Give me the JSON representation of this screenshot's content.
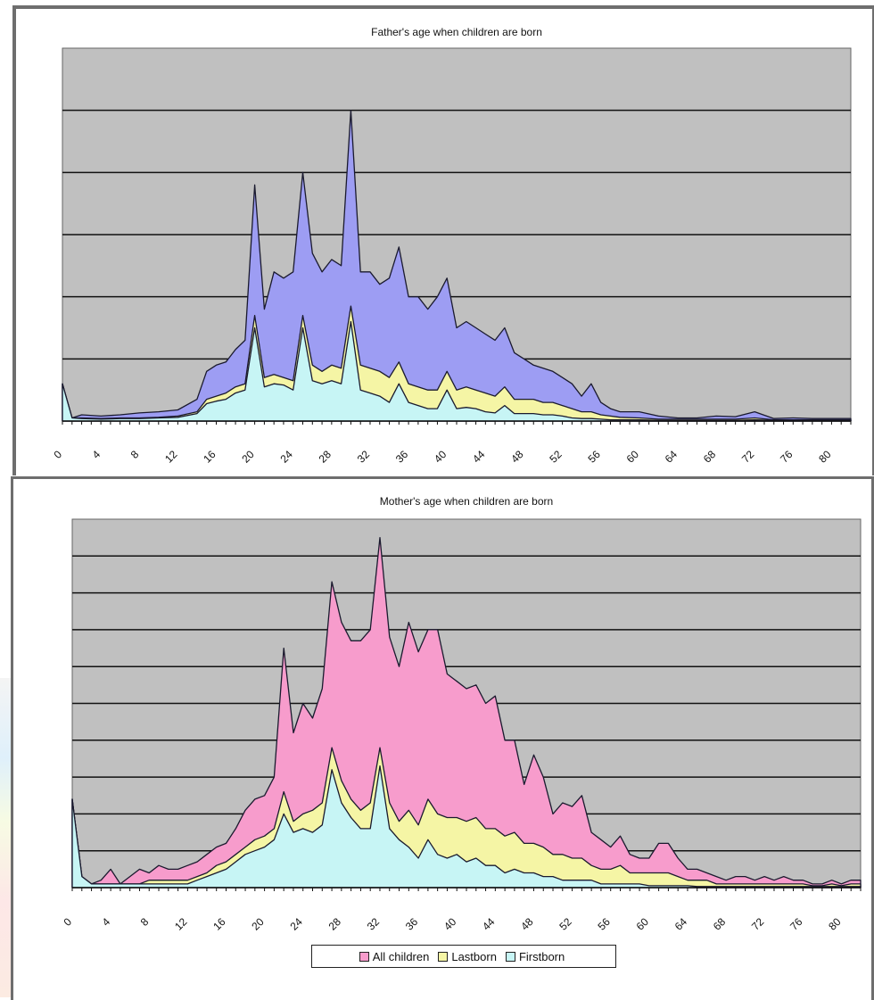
{
  "chart_data": [
    {
      "type": "area",
      "title": "Father's age when children are born",
      "xlabel": "",
      "ylabel": "",
      "x_tick_labels": [
        "0",
        "4",
        "8",
        "12",
        "16",
        "20",
        "24",
        "28",
        "32",
        "36",
        "40",
        "44",
        "48",
        "52",
        "56",
        "60",
        "64",
        "68",
        "72",
        "76",
        "80"
      ],
      "x_range": [
        0,
        82
      ],
      "ylim": [
        0,
        60
      ],
      "grid": true,
      "colors": {
        "All children": "#9d9df3",
        "Lastborn": "#f5f5a5",
        "Firstborn": "#c7f5f5",
        "plot_bg": "#c0c0c0"
      },
      "series": [
        {
          "name": "All children",
          "x": [
            0,
            1,
            2,
            4,
            6,
            8,
            10,
            12,
            14,
            15,
            16,
            17,
            18,
            19,
            20,
            21,
            22,
            23,
            24,
            25,
            26,
            27,
            28,
            29,
            30,
            31,
            32,
            33,
            34,
            35,
            36,
            37,
            38,
            39,
            40,
            41,
            42,
            43,
            44,
            45,
            46,
            47,
            48,
            49,
            50,
            51,
            52,
            53,
            54,
            55,
            56,
            57,
            58,
            60,
            62,
            64,
            66,
            68,
            70,
            72,
            74,
            76,
            78,
            80,
            82
          ],
          "values": [
            6,
            0.5,
            1,
            0.8,
            1,
            1.3,
            1.5,
            1.8,
            3.5,
            8,
            9,
            9.5,
            11.5,
            13,
            38,
            18,
            24,
            23,
            24,
            40,
            27,
            24,
            26,
            25,
            50,
            24,
            24,
            22,
            23,
            28,
            20,
            20,
            18,
            20,
            23,
            15,
            16,
            15,
            14,
            13,
            15,
            11,
            10,
            9,
            8.5,
            8,
            7,
            6,
            4,
            6,
            3,
            2,
            1.5,
            1.5,
            0.8,
            0.5,
            0.5,
            0.8,
            0.7,
            1.5,
            0.4,
            0.5,
            0.4,
            0.4,
            0.4
          ]
        },
        {
          "name": "Lastborn",
          "x": [
            0,
            1,
            2,
            4,
            6,
            8,
            10,
            12,
            14,
            15,
            16,
            17,
            18,
            19,
            20,
            21,
            22,
            23,
            24,
            25,
            26,
            27,
            28,
            29,
            30,
            31,
            32,
            33,
            34,
            35,
            36,
            37,
            38,
            39,
            40,
            41,
            42,
            43,
            44,
            45,
            46,
            47,
            48,
            49,
            50,
            51,
            52,
            53,
            54,
            55,
            56,
            57,
            58,
            60,
            62,
            64,
            66,
            68,
            70,
            72,
            74,
            76,
            78,
            80,
            82
          ],
          "values": [
            6,
            0.5,
            0.5,
            0.4,
            0.5,
            0.5,
            0.6,
            0.8,
            1.5,
            3.5,
            4,
            4.5,
            5.5,
            6,
            17,
            7,
            7.5,
            7,
            6.5,
            17,
            9,
            8,
            9,
            8.5,
            18.5,
            9,
            8.5,
            8,
            7,
            9.5,
            6,
            5.5,
            5,
            5,
            8,
            5,
            5.5,
            5,
            4.5,
            4,
            5.5,
            3.5,
            3.5,
            3.5,
            3,
            3,
            2.5,
            2,
            1.5,
            1.5,
            1,
            0.8,
            0.6,
            0.5,
            0.3,
            0.3,
            0.3,
            0.3,
            0.3,
            0.5,
            0.2,
            0.2,
            0.2,
            0.2,
            0.2
          ]
        },
        {
          "name": "Firstborn",
          "x": [
            0,
            1,
            2,
            4,
            6,
            8,
            10,
            12,
            14,
            15,
            16,
            17,
            18,
            19,
            20,
            21,
            22,
            23,
            24,
            25,
            26,
            27,
            28,
            29,
            30,
            31,
            32,
            33,
            34,
            35,
            36,
            37,
            38,
            39,
            40,
            41,
            42,
            43,
            44,
            45,
            46,
            47,
            48,
            49,
            50,
            51,
            52,
            53,
            54,
            55,
            56,
            57,
            58,
            60,
            62,
            64,
            66,
            68,
            70,
            72,
            74,
            76,
            78,
            80,
            82
          ],
          "values": [
            6,
            0.5,
            0.4,
            0.3,
            0.4,
            0.4,
            0.5,
            0.6,
            1.2,
            2.8,
            3.2,
            3.5,
            4.5,
            5,
            15,
            5.5,
            6,
            5.8,
            5,
            15,
            6.5,
            6,
            6.5,
            6,
            16,
            5,
            4.5,
            4,
            3,
            6,
            3,
            2.5,
            2,
            2,
            5,
            2,
            2.2,
            2,
            1.5,
            1.3,
            2.5,
            1.2,
            1.2,
            1.2,
            1,
            1,
            0.8,
            0.5,
            0.4,
            0.4,
            0.3,
            0.2,
            0.2,
            0.2,
            0.1,
            0.1,
            0.1,
            0.1,
            0.1,
            0.2,
            0.1,
            0.1,
            0.1,
            0.1,
            0.1
          ]
        }
      ]
    },
    {
      "type": "area",
      "title": "Mother's age when children are born",
      "xlabel": "",
      "ylabel": "",
      "x_tick_labels": [
        "0",
        "4",
        "8",
        "12",
        "16",
        "20",
        "24",
        "28",
        "32",
        "36",
        "40",
        "44",
        "48",
        "52",
        "56",
        "60",
        "64",
        "68",
        "72",
        "76",
        "80"
      ],
      "x_range": [
        0,
        82
      ],
      "ylim": [
        0,
        100
      ],
      "grid": true,
      "legend_position": "bottom",
      "colors": {
        "All children": "#f79ccc",
        "Lastborn": "#f5f5a5",
        "Firstborn": "#c7f5f5",
        "plot_bg": "#c0c0c0"
      },
      "series": [
        {
          "name": "All children",
          "x": [
            0,
            1,
            2,
            3,
            4,
            5,
            6,
            7,
            8,
            9,
            10,
            11,
            12,
            13,
            14,
            15,
            16,
            17,
            18,
            19,
            20,
            21,
            22,
            23,
            24,
            25,
            26,
            27,
            28,
            29,
            30,
            31,
            32,
            33,
            34,
            35,
            36,
            37,
            38,
            39,
            40,
            41,
            42,
            43,
            44,
            45,
            46,
            47,
            48,
            49,
            50,
            51,
            52,
            53,
            54,
            55,
            56,
            57,
            58,
            59,
            60,
            61,
            62,
            63,
            64,
            65,
            66,
            67,
            68,
            69,
            70,
            71,
            72,
            73,
            74,
            75,
            76,
            77,
            78,
            79,
            80,
            81,
            82
          ],
          "values": [
            24,
            3,
            1,
            2,
            5,
            1,
            3,
            5,
            4,
            6,
            5,
            5,
            6,
            7,
            9,
            11,
            12,
            16,
            21,
            24,
            25,
            30,
            65,
            42,
            50,
            46,
            54,
            83,
            72,
            67,
            67,
            70,
            95,
            68,
            60,
            72,
            64,
            70,
            70,
            58,
            56,
            54,
            55,
            50,
            52,
            40,
            40,
            28,
            36,
            30,
            20,
            23,
            22,
            25,
            15,
            13,
            11,
            14,
            9,
            8,
            8,
            12,
            12,
            8,
            5,
            5,
            4,
            3,
            2,
            3,
            3,
            2,
            3,
            2,
            3,
            2,
            2,
            1,
            1,
            2,
            1,
            2,
            2
          ]
        },
        {
          "name": "Lastborn",
          "x": [
            0,
            1,
            2,
            3,
            4,
            5,
            6,
            7,
            8,
            9,
            10,
            11,
            12,
            13,
            14,
            15,
            16,
            17,
            18,
            19,
            20,
            21,
            22,
            23,
            24,
            25,
            26,
            27,
            28,
            29,
            30,
            31,
            32,
            33,
            34,
            35,
            36,
            37,
            38,
            39,
            40,
            41,
            42,
            43,
            44,
            45,
            46,
            47,
            48,
            49,
            50,
            51,
            52,
            53,
            54,
            55,
            56,
            57,
            58,
            59,
            60,
            61,
            62,
            63,
            64,
            65,
            66,
            67,
            68,
            69,
            70,
            71,
            72,
            73,
            74,
            75,
            76,
            77,
            78,
            79,
            80,
            81,
            82
          ],
          "values": [
            24,
            3,
            1,
            1,
            1,
            1,
            1,
            1,
            2,
            2,
            2,
            2,
            2,
            3,
            4,
            6,
            7,
            9,
            11,
            13,
            14,
            16,
            26,
            18,
            20,
            21,
            23,
            38,
            29,
            24,
            21,
            23,
            38,
            23,
            18,
            21,
            17,
            24,
            20,
            19,
            19,
            18,
            19,
            16,
            16,
            14,
            15,
            12,
            12,
            11,
            9,
            9,
            8,
            8,
            6,
            5,
            5,
            6,
            4,
            4,
            4,
            4,
            4,
            3,
            2,
            2,
            2,
            1,
            1,
            1,
            1,
            1,
            1,
            1,
            1,
            1,
            1,
            0.5,
            0.5,
            1,
            0.5,
            1,
            1
          ]
        },
        {
          "name": "Firstborn",
          "x": [
            0,
            1,
            2,
            3,
            4,
            5,
            6,
            7,
            8,
            9,
            10,
            11,
            12,
            13,
            14,
            15,
            16,
            17,
            18,
            19,
            20,
            21,
            22,
            23,
            24,
            25,
            26,
            27,
            28,
            29,
            30,
            31,
            32,
            33,
            34,
            35,
            36,
            37,
            38,
            39,
            40,
            41,
            42,
            43,
            44,
            45,
            46,
            47,
            48,
            49,
            50,
            51,
            52,
            53,
            54,
            55,
            56,
            57,
            58,
            59,
            60,
            61,
            62,
            63,
            64,
            65,
            66,
            67,
            68,
            69,
            70,
            71,
            72,
            73,
            74,
            75,
            76,
            77,
            78,
            79,
            80,
            81,
            82
          ],
          "values": [
            24,
            3,
            1,
            1,
            1,
            1,
            1,
            1,
            1,
            1,
            1,
            1,
            1,
            2,
            3,
            4,
            5,
            7,
            9,
            10,
            11,
            13,
            20,
            15,
            16,
            15,
            17,
            32,
            23,
            19,
            16,
            16,
            33,
            16,
            13,
            11,
            8,
            13,
            9,
            8,
            9,
            7,
            8,
            6,
            6,
            4,
            5,
            4,
            4,
            3,
            3,
            2,
            2,
            2,
            2,
            1,
            1,
            1,
            1,
            1,
            0.5,
            0.5,
            0.5,
            0.5,
            0.5,
            0.3,
            0.3,
            0.3,
            0.3,
            0.3,
            0.3,
            0.3,
            0.3,
            0.3,
            0.3,
            0.3,
            0.3,
            0.3,
            0.3,
            0.3,
            0.3,
            0.3,
            0.3
          ]
        }
      ]
    }
  ],
  "legend": {
    "items": [
      {
        "label": "All children",
        "color": "#f79ccc"
      },
      {
        "label": "Lastborn",
        "color": "#f5f5a5"
      },
      {
        "label": "Firstborn",
        "color": "#c7f5f5"
      }
    ]
  }
}
